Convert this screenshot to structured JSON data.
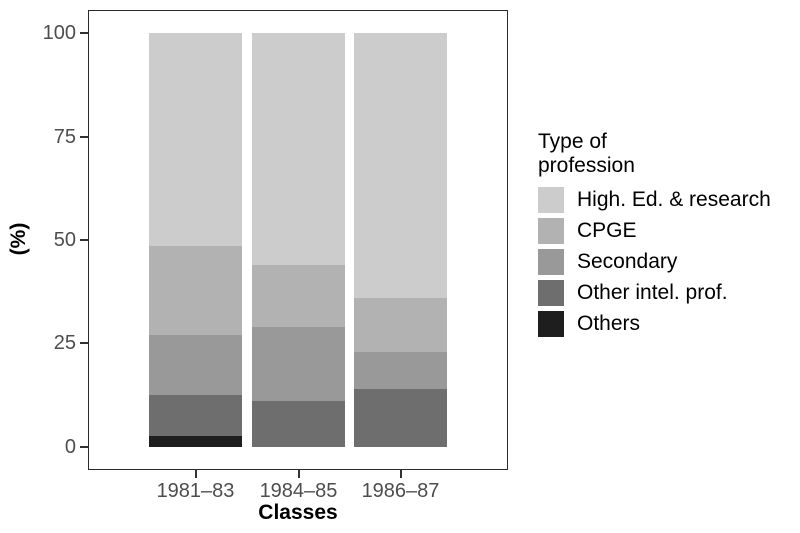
{
  "figure": {
    "background": "#ffffff",
    "panel_border_color": "#2b2b2b",
    "tick_color": "#333333",
    "tick_label_color": "#4d4d4d",
    "axis_title_color": "#000000"
  },
  "axes": {
    "x_title": "Classes",
    "y_title": "(%)"
  },
  "legend": {
    "title": "Type of\nprofession"
  },
  "chart_data": {
    "type": "bar",
    "stacked": true,
    "orientation": "vertical",
    "title": "",
    "xlabel": "Classes",
    "ylabel": "(%)",
    "categories": [
      "1981–83",
      "1984–85",
      "1986–87"
    ],
    "series": [
      {
        "name": "High. Ed. & research",
        "color": "#cccccc",
        "values": [
          51.5,
          56,
          64
        ]
      },
      {
        "name": "CPGE",
        "color": "#b2b2b2",
        "values": [
          21.5,
          15,
          13
        ]
      },
      {
        "name": "Secondary",
        "color": "#999999",
        "values": [
          14.5,
          18,
          9
        ]
      },
      {
        "name": "Other intel. prof.",
        "color": "#6e6e6e",
        "values": [
          10,
          11,
          14
        ]
      },
      {
        "name": "Others",
        "color": "#1e1e1e",
        "values": [
          2.5,
          0,
          0
        ]
      }
    ],
    "ylim": [
      0,
      100
    ],
    "yticks": [
      0,
      25,
      50,
      75,
      100
    ],
    "grid": false,
    "legend_title": "Type of profession",
    "legend_position": "right"
  }
}
